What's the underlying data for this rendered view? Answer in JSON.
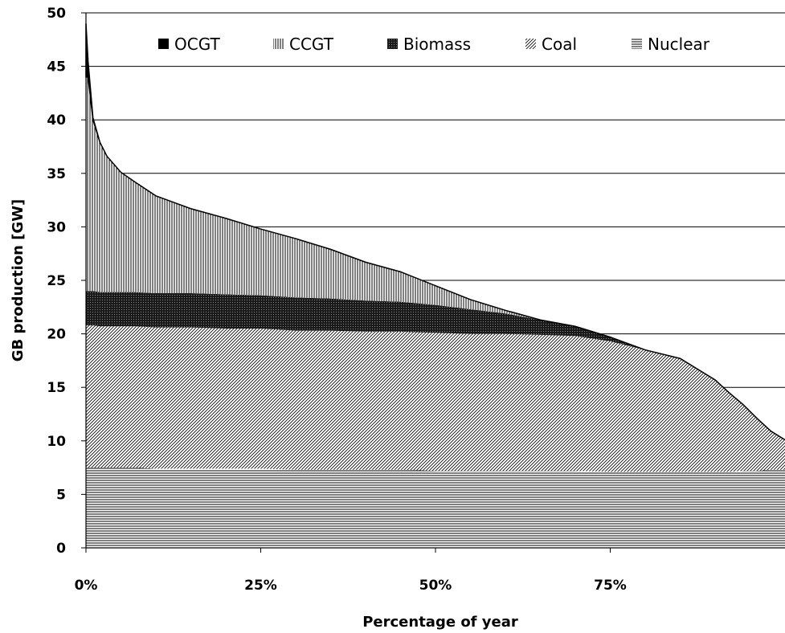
{
  "chart_data": {
    "type": "area",
    "stacked": true,
    "xlabel": "Percentage of year",
    "ylabel": "GB production [GW]",
    "x_unit": "% of year",
    "xlim": [
      0,
      100
    ],
    "ylim": [
      0,
      50
    ],
    "x_ticks": [
      0,
      25,
      50,
      75
    ],
    "x_tick_labels": [
      "0%",
      "25%",
      "50%",
      "75%"
    ],
    "y_ticks": [
      0,
      5,
      10,
      15,
      20,
      25,
      30,
      35,
      40,
      45,
      50
    ],
    "y_tick_labels": [
      "0",
      "5",
      "10",
      "15",
      "20",
      "25",
      "30",
      "35",
      "40",
      "45",
      "50"
    ],
    "grid": "horizontal",
    "legend_position": "top",
    "x": [
      0,
      0.3,
      1,
      2,
      3,
      5,
      7,
      10,
      15,
      20,
      25,
      30,
      35,
      40,
      45,
      50,
      55,
      60,
      65,
      70,
      75,
      80,
      85,
      90,
      92,
      94,
      96,
      98,
      100
    ],
    "series": [
      {
        "name": "Nuclear",
        "pattern": "horizontal-lines",
        "values": [
          7.5,
          7.5,
          7.5,
          7.5,
          7.5,
          7.5,
          7.5,
          7.4,
          7.4,
          7.4,
          7.4,
          7.3,
          7.3,
          7.3,
          7.3,
          7.2,
          7.2,
          7.2,
          7.2,
          7.2,
          7.1,
          7.1,
          7.1,
          7.1,
          7.1,
          7.2,
          7.2,
          7.3,
          7.3
        ]
      },
      {
        "name": "Coal",
        "pattern": "diagonal-lines",
        "values": [
          13.3,
          13.3,
          13.3,
          13.2,
          13.2,
          13.2,
          13.2,
          13.2,
          13.2,
          13.1,
          13.1,
          13.0,
          13.0,
          12.9,
          12.9,
          12.9,
          12.8,
          12.8,
          12.7,
          12.6,
          12.2,
          11.4,
          10.6,
          8.6,
          7.4,
          6.2,
          4.9,
          3.6,
          2.8
        ]
      },
      {
        "name": "Biomass",
        "pattern": "dense-crosshatch",
        "values": [
          3.2,
          3.2,
          3.2,
          3.2,
          3.2,
          3.2,
          3.2,
          3.2,
          3.2,
          3.2,
          3.1,
          3.1,
          3.0,
          2.9,
          2.8,
          2.6,
          2.3,
          1.9,
          1.4,
          0.9,
          0.4,
          0,
          0,
          0,
          0,
          0,
          0,
          0,
          0
        ]
      },
      {
        "name": "CCGT",
        "pattern": "vertical-lines",
        "values": [
          20.0,
          20.0,
          16.0,
          14.0,
          12.7,
          11.2,
          10.3,
          9.1,
          7.9,
          7.1,
          6.2,
          5.5,
          4.6,
          3.6,
          2.8,
          1.8,
          0.9,
          0.3,
          0,
          0,
          0,
          0,
          0,
          0,
          0,
          0,
          0,
          0,
          0
        ]
      },
      {
        "name": "OCGT",
        "pattern": "solid-black",
        "values": [
          5.0,
          1.5,
          0.2,
          0,
          0,
          0,
          0,
          0,
          0,
          0,
          0,
          0,
          0,
          0,
          0,
          0,
          0,
          0,
          0,
          0,
          0,
          0,
          0,
          0,
          0,
          0,
          0,
          0,
          0
        ]
      }
    ],
    "legend_order": [
      "OCGT",
      "CCGT",
      "Biomass",
      "Coal",
      "Nuclear"
    ]
  }
}
